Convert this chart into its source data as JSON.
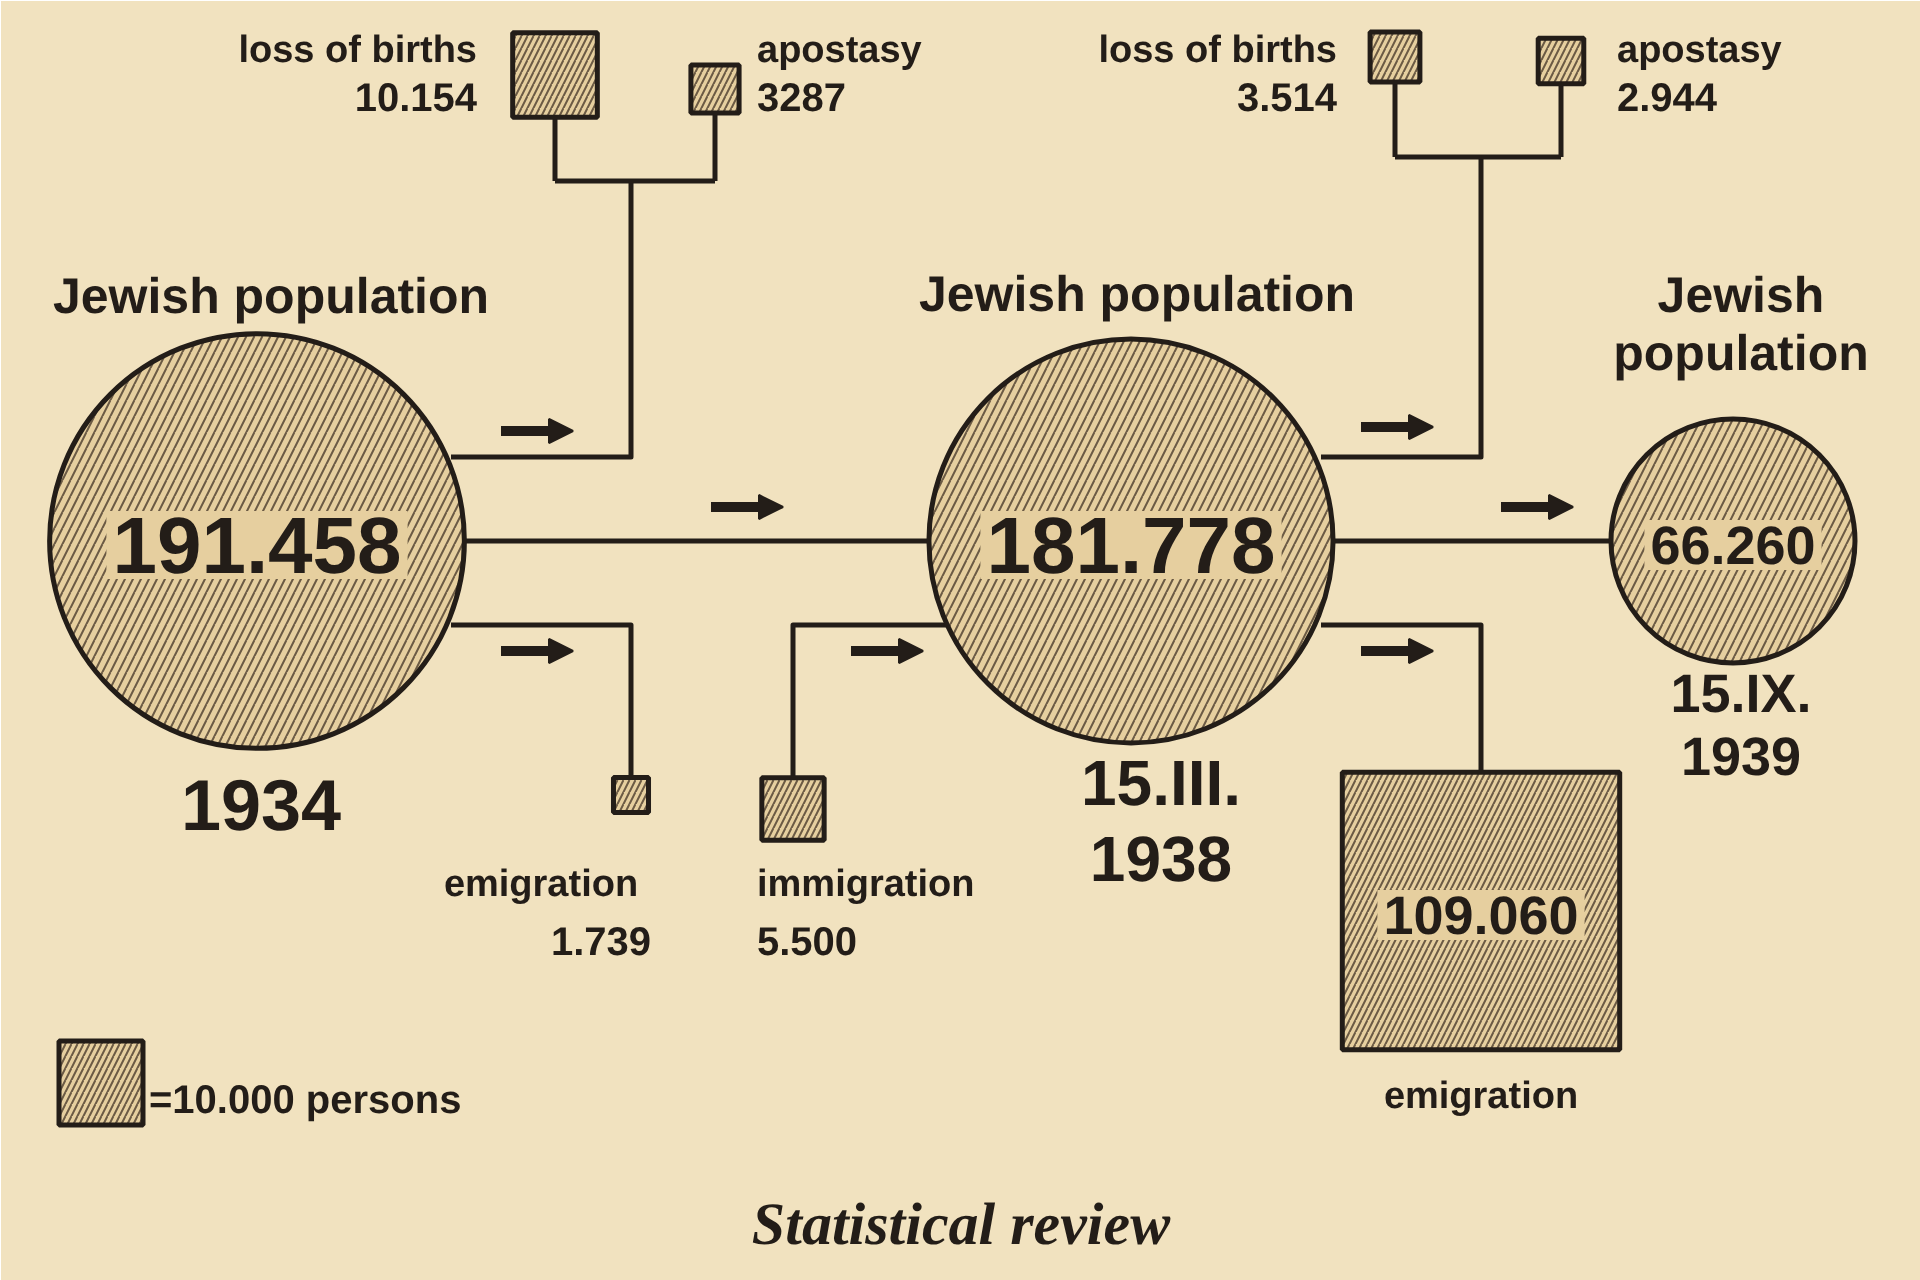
{
  "chart_data": {
    "type": "other",
    "title": "Statistical review",
    "categories": [
      "Jewish population",
      "loss of births",
      "apostasy",
      "emigration",
      "immigration",
      "Jewish population",
      "loss of births",
      "apostasy",
      "emigration",
      "Jewish population"
    ],
    "values": [
      191458,
      10154,
      3287,
      1739,
      5500,
      181778,
      3514,
      2944,
      109060,
      66260
    ],
    "value_labels": [
      "191.458",
      "10.154",
      "3287",
      "1.739",
      "5.500",
      "181.778",
      "3.514",
      "2.944",
      "109.060",
      "66.260"
    ],
    "colors": [
      "#e6cf9f",
      "#e6cf9f",
      "#e6cf9f",
      "#e6cf9f",
      "#e6cf9f",
      "#e6cf9f",
      "#e6cf9f",
      "#e6cf9f",
      "#e6cf9f",
      "#e6cf9f"
    ],
    "annotations": [
      "1934",
      "15.III.\n1938",
      "15.IX.\n1939",
      "=10.000 persons"
    ]
  }
}
